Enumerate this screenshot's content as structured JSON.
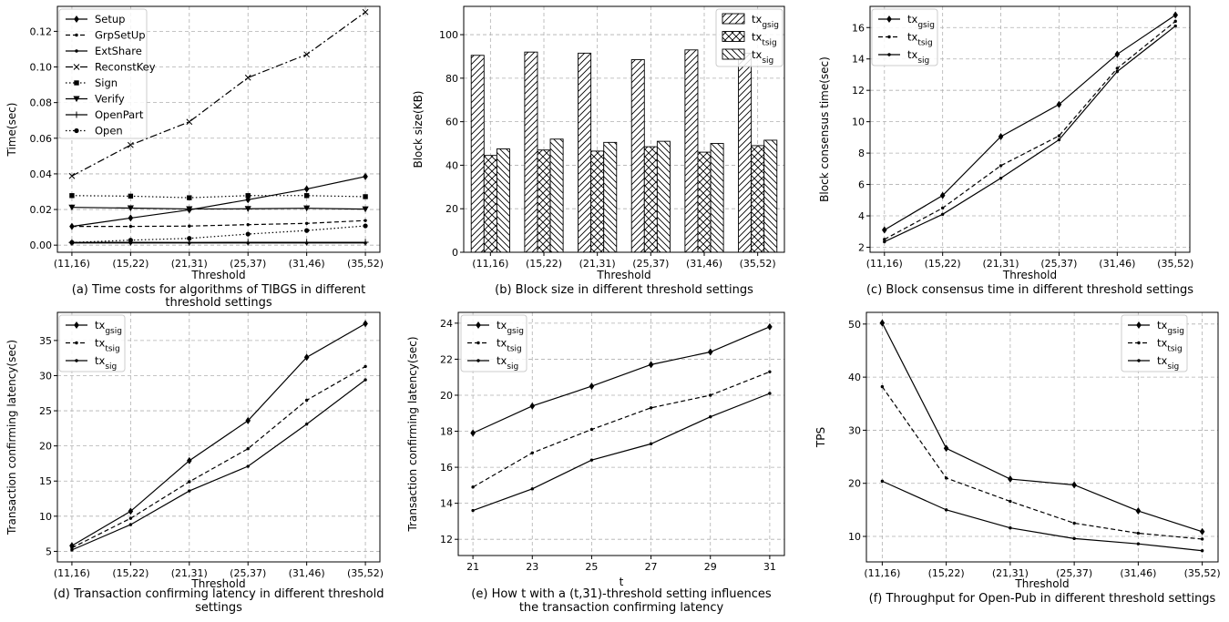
{
  "chart_data": [
    {
      "type": "line",
      "caption": [
        "(a) Time costs for algorithms of TIBGS in different",
        "threshold settings"
      ],
      "xlabel": "Threshold",
      "ylabel": "Time(sec)",
      "categories": [
        "(11,16)",
        "(15,22)",
        "(21,31)",
        "(25,37)",
        "(31,46)",
        "(35,52)"
      ],
      "ylim": [
        -0.004,
        0.134
      ],
      "yticks": [
        0.0,
        0.02,
        0.04,
        0.06,
        0.08,
        0.1,
        0.12
      ],
      "yticklabels": [
        "0.00",
        "0.02",
        "0.04",
        "0.06",
        "0.08",
        "0.10",
        "0.12"
      ],
      "grid": true,
      "legend": "top-left",
      "series": [
        {
          "name": "Setup",
          "dash": "",
          "marker": "diamond",
          "values": [
            0.0105,
            0.0152,
            0.0198,
            0.0255,
            0.0315,
            0.0385
          ]
        },
        {
          "name": "GrpSetUp",
          "dash": "5,3",
          "marker": "dot",
          "values": [
            0.0105,
            0.0105,
            0.0107,
            0.0115,
            0.0122,
            0.0138
          ]
        },
        {
          "name": "ExtShare",
          "dash": "",
          "marker": "dot",
          "values": [
            0.0012,
            0.0012,
            0.0012,
            0.0012,
            0.0012,
            0.0012
          ]
        },
        {
          "name": "ReconstKey",
          "dash": "8,3,2,3",
          "marker": "x",
          "values": [
            0.0388,
            0.0562,
            0.0692,
            0.094,
            0.107,
            0.1308
          ]
        },
        {
          "name": "Sign",
          "dash": "1.5,2.5",
          "marker": "square",
          "values": [
            0.0278,
            0.0275,
            0.0266,
            0.0278,
            0.0278,
            0.0272
          ]
        },
        {
          "name": "Verify",
          "dash": "",
          "marker": "triangle",
          "values": [
            0.0212,
            0.0208,
            0.0203,
            0.0204,
            0.0207,
            0.0202
          ]
        },
        {
          "name": "OpenPart",
          "dash": "",
          "marker": "plus",
          "values": [
            0.0015,
            0.0016,
            0.0015,
            0.0016,
            0.0016,
            0.0016
          ]
        },
        {
          "name": "Open",
          "dash": "1.5,2.5",
          "marker": "circle",
          "values": [
            0.0015,
            0.0028,
            0.0038,
            0.0062,
            0.0082,
            0.0108
          ]
        }
      ]
    },
    {
      "type": "bar",
      "caption": [
        "(b) Block size in different threshold settings"
      ],
      "xlabel": "Threshold",
      "ylabel": "Block size(KB)",
      "categories": [
        "(11,16)",
        "(15,22)",
        "(21,31)",
        "(25,37)",
        "(31,46)",
        "(35,52)"
      ],
      "ylim": [
        0,
        113
      ],
      "yticks": [
        0,
        20,
        40,
        60,
        80,
        100
      ],
      "yticklabels": [
        "0",
        "20",
        "40",
        "60",
        "80",
        "100"
      ],
      "grid": true,
      "legend": "top-right",
      "series": [
        {
          "name": "tx",
          "sub": "gsig",
          "pattern": "hatch-fwd",
          "values": [
            90.5,
            92.0,
            91.5,
            88.5,
            93.0,
            91.5
          ]
        },
        {
          "name": "tx",
          "sub": "tsig",
          "pattern": "hatch-cross",
          "values": [
            44.5,
            47.0,
            46.5,
            48.5,
            46.0,
            49.0
          ]
        },
        {
          "name": "tx",
          "sub": "sig",
          "pattern": "hatch-back",
          "values": [
            47.5,
            52.0,
            50.5,
            51.0,
            50.0,
            51.5
          ]
        }
      ]
    },
    {
      "type": "line",
      "caption": [
        "(c) Block consensus time in different threshold settings"
      ],
      "xlabel": "Threshold",
      "ylabel": "Block consensus time(sec)",
      "categories": [
        "(11,16)",
        "(15,22)",
        "(21,31)",
        "(25,37)",
        "(31,46)",
        "(35,52)"
      ],
      "ylim": [
        1.68,
        17.35
      ],
      "yticks": [
        2,
        4,
        6,
        8,
        10,
        12,
        14,
        16
      ],
      "yticklabels": [
        "2",
        "4",
        "6",
        "8",
        "10",
        "12",
        "14",
        "16"
      ],
      "grid": true,
      "legend": "top-left",
      "series": [
        {
          "name": "tx",
          "sub": "gsig",
          "dash": "",
          "marker": "diamond",
          "values": [
            3.1,
            5.3,
            9.05,
            11.1,
            14.3,
            16.8
          ]
        },
        {
          "name": "tx",
          "sub": "tsig",
          "dash": "5,3",
          "marker": "dot",
          "values": [
            2.5,
            4.5,
            7.2,
            9.1,
            13.4,
            16.4
          ]
        },
        {
          "name": "tx",
          "sub": "sig",
          "dash": "",
          "marker": "dot",
          "values": [
            2.35,
            4.1,
            6.4,
            8.85,
            13.2,
            16.1
          ]
        }
      ]
    },
    {
      "type": "line",
      "caption": [
        "(d) Transaction confirming latency in different threshold",
        "settings"
      ],
      "xlabel": "Threshold",
      "ylabel": "Transaction confirming latency(sec)",
      "categories": [
        "(11,16)",
        "(15,22)",
        "(21,31)",
        "(25,37)",
        "(31,46)",
        "(35,52)"
      ],
      "ylim": [
        3.5,
        39.0
      ],
      "yticks": [
        5,
        10,
        15,
        20,
        25,
        30,
        35
      ],
      "yticklabels": [
        "5",
        "10",
        "15",
        "20",
        "25",
        "30",
        "35"
      ],
      "grid": true,
      "legend": "top-left",
      "series": [
        {
          "name": "tx",
          "sub": "gsig",
          "dash": "",
          "marker": "diamond",
          "values": [
            5.8,
            10.7,
            17.9,
            23.6,
            32.6,
            37.4
          ]
        },
        {
          "name": "tx",
          "sub": "tsig",
          "dash": "5,3",
          "marker": "dot",
          "values": [
            5.5,
            9.7,
            14.9,
            19.6,
            26.5,
            31.3
          ]
        },
        {
          "name": "tx",
          "sub": "sig",
          "dash": "",
          "marker": "dot",
          "values": [
            5.2,
            8.8,
            13.6,
            17.1,
            23.1,
            29.4
          ]
        }
      ]
    },
    {
      "type": "line",
      "caption": [
        "(e) How t with a (t,31)-threshold setting influences",
        "the transaction confirming latency"
      ],
      "xlabel": "t",
      "ylabel": "Transaction confirming latency(sec)",
      "categories": [
        "21",
        "23",
        "25",
        "27",
        "29",
        "31"
      ],
      "ylim": [
        11.1,
        24.6
      ],
      "yticks": [
        12,
        14,
        16,
        18,
        20,
        22,
        24
      ],
      "yticklabels": [
        "12",
        "14",
        "16",
        "18",
        "20",
        "22",
        "24"
      ],
      "grid": true,
      "legend": "top-left",
      "series": [
        {
          "name": "tx",
          "sub": "gsig",
          "dash": "",
          "marker": "diamond",
          "values": [
            17.9,
            19.4,
            20.5,
            21.7,
            22.4,
            23.8
          ]
        },
        {
          "name": "tx",
          "sub": "tsig",
          "dash": "5,3",
          "marker": "dot",
          "values": [
            14.9,
            16.8,
            18.1,
            19.3,
            20.0,
            21.3
          ]
        },
        {
          "name": "tx",
          "sub": "sig",
          "dash": "",
          "marker": "dot",
          "values": [
            13.6,
            14.8,
            16.4,
            17.3,
            18.8,
            20.1
          ]
        }
      ]
    },
    {
      "type": "line",
      "caption": [
        "(f) Throughput for Open-Pub in different threshold settings"
      ],
      "xlabel": "Threshold",
      "ylabel": "TPS",
      "categories": [
        "(11,16)",
        "(15,22)",
        "(21,31)",
        "(25,37)",
        "(31,46)",
        "(35,52)"
      ],
      "ylim": [
        5.2,
        52.2
      ],
      "yticks": [
        10,
        20,
        30,
        40,
        50
      ],
      "yticklabels": [
        "10",
        "20",
        "30",
        "40",
        "50"
      ],
      "grid": true,
      "legend": "top-right",
      "series": [
        {
          "name": "tx",
          "sub": "gsig",
          "dash": "",
          "marker": "diamond",
          "values": [
            50.2,
            26.6,
            20.8,
            19.7,
            14.8,
            10.9
          ]
        },
        {
          "name": "tx",
          "sub": "tsig",
          "dash": "5,3",
          "marker": "dot",
          "values": [
            38.2,
            21.0,
            16.6,
            12.5,
            10.6,
            9.5
          ]
        },
        {
          "name": "tx",
          "sub": "sig",
          "dash": "",
          "marker": "dot",
          "values": [
            20.4,
            15.0,
            11.6,
            9.6,
            8.6,
            7.3
          ]
        }
      ]
    }
  ]
}
